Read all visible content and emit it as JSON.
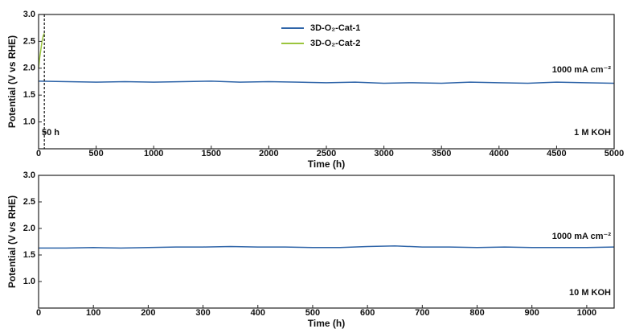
{
  "chart_data": [
    {
      "type": "line",
      "xlabel": "Time (h)",
      "ylabel": "Potential (V vs RHE)",
      "xlim": [
        0,
        5000
      ],
      "xticks": [
        0,
        500,
        1000,
        1500,
        2000,
        2500,
        3000,
        3500,
        4000,
        4500,
        5000
      ],
      "ylim": [
        0.5,
        3.0
      ],
      "yticks": [
        {
          "value": 1,
          "label": "1.0"
        },
        1.5,
        {
          "value": 2,
          "label": "2.0"
        },
        2.5,
        {
          "value": 3,
          "label": "3.0"
        }
      ],
      "series": [
        {
          "name": "3D-O₂-Cat-1",
          "color": "#2e64a8",
          "x": [
            0,
            250,
            500,
            750,
            1000,
            1250,
            1500,
            1750,
            2000,
            2250,
            2500,
            2750,
            3000,
            3250,
            3500,
            3750,
            4000,
            4250,
            4500,
            4750,
            5000
          ],
          "values": [
            1.76,
            1.75,
            1.74,
            1.75,
            1.74,
            1.75,
            1.76,
            1.74,
            1.75,
            1.74,
            1.73,
            1.74,
            1.72,
            1.73,
            1.72,
            1.74,
            1.73,
            1.72,
            1.74,
            1.73,
            1.72
          ]
        },
        {
          "name": "3D-O₂-Cat-2",
          "color": "#9bc53d",
          "x": [
            0,
            10,
            20,
            30,
            40,
            50
          ],
          "values": [
            2.0,
            2.2,
            2.35,
            2.5,
            2.6,
            2.65
          ]
        }
      ],
      "vline_x": 50,
      "annotations": [
        "1000 mA cm⁻²",
        "50 h",
        "1 M KOH"
      ]
    },
    {
      "type": "line",
      "xlabel": "Time (h)",
      "ylabel": "Potential (V vs RHE)",
      "xlim": [
        0,
        1050
      ],
      "xticks": [
        0,
        100,
        200,
        300,
        400,
        500,
        600,
        700,
        800,
        900,
        1000
      ],
      "ylim": [
        0.5,
        3.0
      ],
      "yticks": [
        {
          "value": 1,
          "label": "1.0"
        },
        1.5,
        {
          "value": 2,
          "label": "2.0"
        },
        2.5,
        {
          "value": 3,
          "label": "3.0"
        }
      ],
      "series": [
        {
          "color": "#2e64a8",
          "x": [
            0,
            50,
            100,
            150,
            200,
            250,
            300,
            350,
            400,
            450,
            500,
            550,
            600,
            650,
            700,
            750,
            800,
            850,
            900,
            950,
            1000,
            1050
          ],
          "values": [
            1.63,
            1.63,
            1.64,
            1.63,
            1.64,
            1.65,
            1.65,
            1.66,
            1.65,
            1.65,
            1.64,
            1.64,
            1.66,
            1.67,
            1.65,
            1.65,
            1.64,
            1.65,
            1.64,
            1.64,
            1.64,
            1.65
          ]
        }
      ],
      "annotations": [
        "1000 mA cm⁻²",
        "10 M KOH"
      ]
    }
  ]
}
